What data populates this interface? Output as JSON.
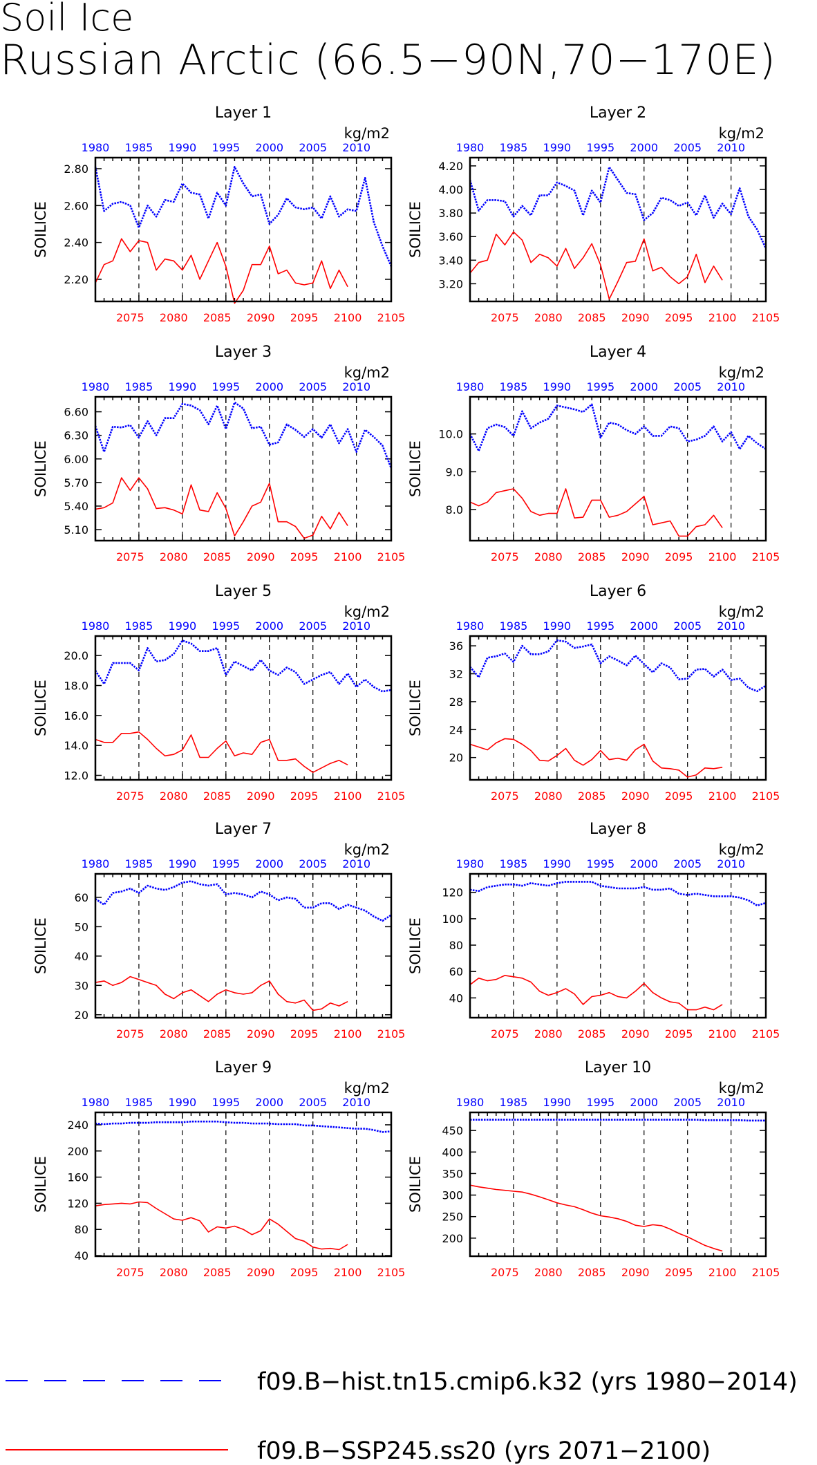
{
  "page": {
    "title_line1": "Soil Ice",
    "title_line2": "Russian Arctic (66.5−90N,70−170E)"
  },
  "colors": {
    "hist": "#0000ff",
    "ssp": "#ff0000",
    "axis": "#000000"
  },
  "axes_text": {
    "ylabel": "SOILICE",
    "units": "kg/m2",
    "top_ticks": [
      "1980",
      "1985",
      "1990",
      "1995",
      "2000",
      "2005",
      "2010"
    ],
    "bottom_ticks": [
      "2075",
      "2080",
      "2085",
      "2090",
      "2095",
      "2100",
      "2105"
    ]
  },
  "legend": {
    "hist_label": "f09.B−hist.tn15.cmip6.k32 (yrs 1980−2014)",
    "ssp_label": "f09.B−SSP245.ss20 (yrs 2071−2100)"
  },
  "chart_data": [
    {
      "type": "line",
      "title": "Layer 1",
      "ylabel": "SOILICE",
      "units": "kg/m2",
      "x_top": {
        "range": [
          1980,
          2014
        ]
      },
      "x_bottom": {
        "range": [
          2071,
          2105
        ]
      },
      "ylim": [
        2.08,
        2.86
      ],
      "yticks": [
        "2.20",
        "2.40",
        "2.60",
        "2.80"
      ],
      "series": [
        {
          "name": "f09.B−hist.tn15.cmip6.k32",
          "axis": "top",
          "x0": 1980,
          "values": [
            2.81,
            2.57,
            2.61,
            2.62,
            2.6,
            2.48,
            2.6,
            2.54,
            2.63,
            2.62,
            2.72,
            2.67,
            2.66,
            2.53,
            2.67,
            2.6,
            2.81,
            2.72,
            2.65,
            2.66,
            2.5,
            2.55,
            2.64,
            2.59,
            2.58,
            2.59,
            2.53,
            2.65,
            2.54,
            2.58,
            2.57,
            2.75,
            2.51,
            2.38,
            2.27
          ]
        },
        {
          "name": "f09.B−SSP245.ss20",
          "axis": "bottom",
          "x0": 2071,
          "values": [
            2.18,
            2.28,
            2.3,
            2.42,
            2.35,
            2.41,
            2.4,
            2.25,
            2.31,
            2.3,
            2.25,
            2.33,
            2.2,
            2.3,
            2.4,
            2.27,
            2.07,
            2.14,
            2.28,
            2.28,
            2.38,
            2.23,
            2.25,
            2.18,
            2.17,
            2.18,
            2.3,
            2.15,
            2.25,
            2.16
          ]
        }
      ]
    },
    {
      "type": "line",
      "title": "Layer 2",
      "ylabel": "SOILICE",
      "units": "kg/m2",
      "x_top": {
        "range": [
          1980,
          2014
        ]
      },
      "x_bottom": {
        "range": [
          2071,
          2105
        ]
      },
      "ylim": [
        3.05,
        4.27
      ],
      "yticks": [
        "3.20",
        "3.40",
        "3.60",
        "3.80",
        "4.00",
        "4.20"
      ],
      "series": [
        {
          "name": "f09.B−hist.tn15.cmip6.k32",
          "axis": "top",
          "x0": 1980,
          "values": [
            4.08,
            3.82,
            3.91,
            3.91,
            3.9,
            3.77,
            3.86,
            3.78,
            3.95,
            3.95,
            4.06,
            4.03,
            3.99,
            3.78,
            3.99,
            3.89,
            4.19,
            4.08,
            3.97,
            3.96,
            3.74,
            3.8,
            3.93,
            3.91,
            3.86,
            3.89,
            3.78,
            3.95,
            3.76,
            3.88,
            3.79,
            4.01,
            3.77,
            3.66,
            3.5
          ]
        },
        {
          "name": "f09.B−SSP245.ss20",
          "axis": "bottom",
          "x0": 2071,
          "values": [
            3.29,
            3.38,
            3.4,
            3.62,
            3.53,
            3.64,
            3.57,
            3.38,
            3.45,
            3.42,
            3.35,
            3.5,
            3.33,
            3.42,
            3.54,
            3.36,
            3.07,
            3.22,
            3.38,
            3.39,
            3.58,
            3.31,
            3.34,
            3.26,
            3.2,
            3.26,
            3.45,
            3.21,
            3.35,
            3.23
          ]
        }
      ]
    },
    {
      "type": "line",
      "title": "Layer 3",
      "ylabel": "SOILICE",
      "units": "kg/m2",
      "x_top": {
        "range": [
          1980,
          2014
        ]
      },
      "x_bottom": {
        "range": [
          2071,
          2105
        ]
      },
      "ylim": [
        4.96,
        6.79
      ],
      "yticks": [
        "5.10",
        "5.40",
        "5.70",
        "6.00",
        "6.30",
        "6.60"
      ],
      "series": [
        {
          "name": "f09.B−hist.tn15.cmip6.k32",
          "axis": "top",
          "x0": 1980,
          "values": [
            6.42,
            6.09,
            6.41,
            6.4,
            6.43,
            6.27,
            6.48,
            6.3,
            6.52,
            6.52,
            6.7,
            6.68,
            6.62,
            6.44,
            6.68,
            6.38,
            6.72,
            6.64,
            6.39,
            6.41,
            6.18,
            6.21,
            6.44,
            6.37,
            6.28,
            6.38,
            6.27,
            6.44,
            6.2,
            6.38,
            6.09,
            6.37,
            6.28,
            6.17,
            5.88
          ]
        },
        {
          "name": "f09.B−SSP245.ss20",
          "axis": "bottom",
          "x0": 2071,
          "values": [
            5.36,
            5.38,
            5.44,
            5.76,
            5.6,
            5.76,
            5.62,
            5.37,
            5.38,
            5.35,
            5.3,
            5.67,
            5.35,
            5.33,
            5.57,
            5.37,
            5.02,
            5.2,
            5.4,
            5.45,
            5.69,
            5.2,
            5.2,
            5.14,
            4.99,
            5.03,
            5.27,
            5.11,
            5.32,
            5.15
          ]
        }
      ]
    },
    {
      "type": "line",
      "title": "Layer 4",
      "ylabel": "SOILICE",
      "units": "kg/m2",
      "x_top": {
        "range": [
          1980,
          2014
        ]
      },
      "x_bottom": {
        "range": [
          2071,
          2105
        ]
      },
      "ylim": [
        7.18,
        10.98
      ],
      "yticks": [
        "8.0",
        "9.0",
        "10.0"
      ],
      "series": [
        {
          "name": "f09.B−hist.tn15.cmip6.k32",
          "axis": "top",
          "x0": 1980,
          "values": [
            10.0,
            9.55,
            10.15,
            10.25,
            10.18,
            9.95,
            10.6,
            10.15,
            10.3,
            10.4,
            10.75,
            10.7,
            10.65,
            10.58,
            10.78,
            9.9,
            10.3,
            10.25,
            10.1,
            10.0,
            10.2,
            9.95,
            9.95,
            10.2,
            10.15,
            9.8,
            9.85,
            9.95,
            10.2,
            9.8,
            10.05,
            9.6,
            9.95,
            9.75,
            9.6
          ]
        },
        {
          "name": "f09.B−SSP245.ss20",
          "axis": "bottom",
          "x0": 2071,
          "values": [
            8.2,
            8.1,
            8.2,
            8.45,
            8.5,
            8.55,
            8.3,
            7.95,
            7.85,
            7.9,
            7.9,
            8.55,
            7.78,
            7.8,
            8.25,
            8.25,
            7.8,
            7.85,
            7.95,
            8.15,
            8.35,
            7.6,
            7.65,
            7.7,
            7.3,
            7.3,
            7.55,
            7.6,
            7.85,
            7.52
          ]
        }
      ]
    },
    {
      "type": "line",
      "title": "Layer 5",
      "ylabel": "SOILICE",
      "units": "kg/m2",
      "x_top": {
        "range": [
          1980,
          2014
        ]
      },
      "x_bottom": {
        "range": [
          2071,
          2105
        ]
      },
      "ylim": [
        11.7,
        21.3
      ],
      "yticks": [
        "12.0",
        "14.0",
        "16.0",
        "18.0",
        "20.0"
      ],
      "series": [
        {
          "name": "f09.B−hist.tn15.cmip6.k32",
          "axis": "top",
          "x0": 1980,
          "values": [
            19.0,
            18.1,
            19.5,
            19.5,
            19.5,
            19.0,
            20.5,
            19.6,
            19.7,
            20.1,
            21.0,
            20.8,
            20.3,
            20.3,
            20.5,
            18.7,
            19.6,
            19.3,
            19.0,
            19.7,
            19.0,
            18.7,
            19.2,
            18.9,
            18.1,
            18.4,
            18.7,
            18.9,
            18.1,
            18.8,
            17.9,
            18.4,
            17.9,
            17.6,
            17.7
          ]
        },
        {
          "name": "f09.B−SSP245.ss20",
          "axis": "bottom",
          "x0": 2071,
          "values": [
            14.4,
            14.2,
            14.2,
            14.8,
            14.8,
            14.9,
            14.4,
            13.8,
            13.3,
            13.4,
            13.7,
            14.7,
            13.2,
            13.2,
            13.8,
            14.3,
            13.3,
            13.5,
            13.4,
            14.2,
            14.4,
            13.0,
            13.0,
            13.1,
            12.6,
            12.2,
            12.5,
            12.8,
            13.0,
            12.7
          ]
        }
      ]
    },
    {
      "type": "line",
      "title": "Layer 6",
      "ylabel": "SOILICE",
      "units": "kg/m2",
      "x_top": {
        "range": [
          1980,
          2014
        ]
      },
      "x_bottom": {
        "range": [
          2071,
          2105
        ]
      },
      "ylim": [
        16.8,
        37.4
      ],
      "yticks": [
        "20",
        "24",
        "28",
        "32",
        "36"
      ],
      "series": [
        {
          "name": "f09.B−hist.tn15.cmip6.k32",
          "axis": "top",
          "x0": 1980,
          "values": [
            33.0,
            31.5,
            34.3,
            34.5,
            34.9,
            33.7,
            36.0,
            34.8,
            34.8,
            35.2,
            36.8,
            36.6,
            35.7,
            35.9,
            36.2,
            33.5,
            34.5,
            33.9,
            33.2,
            34.6,
            33.4,
            32.2,
            33.5,
            32.9,
            31.2,
            31.3,
            32.6,
            32.7,
            31.6,
            32.6,
            31.1,
            31.3,
            30.0,
            29.5,
            30.3
          ]
        },
        {
          "name": "f09.B−SSP245.ss20",
          "axis": "bottom",
          "x0": 2071,
          "values": [
            21.9,
            21.5,
            21.1,
            22.1,
            22.7,
            22.6,
            21.9,
            21.0,
            19.6,
            19.5,
            20.3,
            21.3,
            19.6,
            18.9,
            19.7,
            21.0,
            19.7,
            19.9,
            19.6,
            21.1,
            21.9,
            19.5,
            18.5,
            18.4,
            18.2,
            17.2,
            17.5,
            18.5,
            18.4,
            18.6
          ]
        }
      ]
    },
    {
      "type": "line",
      "title": "Layer 7",
      "ylabel": "SOILICE",
      "units": "kg/m2",
      "x_top": {
        "range": [
          1980,
          2014
        ]
      },
      "x_bottom": {
        "range": [
          2071,
          2105
        ]
      },
      "ylim": [
        19,
        68
      ],
      "yticks": [
        "20",
        "30",
        "40",
        "50",
        "60"
      ],
      "series": [
        {
          "name": "f09.B−hist.tn15.cmip6.k32",
          "axis": "top",
          "x0": 1980,
          "values": [
            59.5,
            57.5,
            61.5,
            62.0,
            63.0,
            61.5,
            64.0,
            63.0,
            62.5,
            63.5,
            65.0,
            65.5,
            64.5,
            64.0,
            64.5,
            61.0,
            61.5,
            61.0,
            60.0,
            62.0,
            61.0,
            59.0,
            60.0,
            59.5,
            56.5,
            56.5,
            58.0,
            58.0,
            56.0,
            57.5,
            56.5,
            55.5,
            53.5,
            52.0,
            54.0
          ]
        },
        {
          "name": "f09.B−SSP245.ss20",
          "axis": "bottom",
          "x0": 2071,
          "values": [
            31.0,
            31.5,
            30.0,
            31.0,
            33.0,
            32.0,
            31.0,
            30.0,
            27.0,
            25.5,
            27.5,
            28.5,
            26.5,
            24.5,
            27.0,
            28.5,
            27.5,
            27.0,
            27.5,
            30.0,
            31.5,
            27.0,
            24.5,
            24.0,
            25.0,
            21.5,
            22.0,
            24.0,
            23.0,
            24.5
          ]
        }
      ]
    },
    {
      "type": "line",
      "title": "Layer 8",
      "ylabel": "SOILICE",
      "units": "kg/m2",
      "x_top": {
        "range": [
          1980,
          2014
        ]
      },
      "x_bottom": {
        "range": [
          2071,
          2105
        ]
      },
      "ylim": [
        25,
        134
      ],
      "yticks": [
        "40",
        "60",
        "80",
        "100",
        "120"
      ],
      "series": [
        {
          "name": "f09.B−hist.tn15.cmip6.k32",
          "axis": "top",
          "x0": 1980,
          "values": [
            122,
            121,
            124,
            125,
            126,
            126,
            125,
            127,
            126,
            125,
            127,
            128,
            128,
            128,
            128,
            125,
            124,
            123,
            123,
            123,
            124,
            122,
            122,
            123,
            119,
            118,
            119,
            118,
            117,
            117,
            117,
            116,
            114,
            110,
            112
          ]
        },
        {
          "name": "f09.B−SSP245.ss20",
          "axis": "bottom",
          "x0": 2071,
          "values": [
            50,
            55,
            53,
            54,
            57,
            56,
            55,
            52,
            45,
            42,
            44,
            47,
            43,
            35,
            41,
            42,
            44,
            41,
            40,
            45,
            51,
            44,
            40,
            37,
            36,
            31,
            31,
            33,
            31,
            35
          ]
        }
      ]
    },
    {
      "type": "line",
      "title": "Layer 9",
      "ylabel": "SOILICE",
      "units": "kg/m2",
      "x_top": {
        "range": [
          1980,
          2014
        ]
      },
      "x_bottom": {
        "range": [
          2071,
          2105
        ]
      },
      "ylim": [
        39,
        259
      ],
      "yticks": [
        "40",
        "80",
        "120",
        "160",
        "200",
        "240"
      ],
      "series": [
        {
          "name": "f09.B−hist.tn15.cmip6.k32",
          "axis": "top",
          "x0": 1980,
          "values": [
            242,
            241,
            242,
            242,
            243,
            243,
            243,
            244,
            244,
            244,
            244,
            245,
            245,
            245,
            245,
            244,
            243,
            243,
            242,
            242,
            242,
            241,
            241,
            241,
            239,
            239,
            238,
            237,
            236,
            235,
            234,
            234,
            232,
            229,
            230
          ]
        },
        {
          "name": "f09.B−SSP245.ss20",
          "axis": "bottom",
          "x0": 2071,
          "values": [
            116,
            118,
            119,
            120,
            119,
            122,
            121,
            112,
            104,
            96,
            94,
            98,
            93,
            76,
            84,
            82,
            85,
            80,
            72,
            78,
            96,
            88,
            77,
            66,
            62,
            53,
            50,
            51,
            49,
            57
          ]
        }
      ]
    },
    {
      "type": "line",
      "title": "Layer 10",
      "ylabel": "SOILICE",
      "units": "kg/m2",
      "x_top": {
        "range": [
          1980,
          2014
        ]
      },
      "x_bottom": {
        "range": [
          2071,
          2105
        ]
      },
      "ylim": [
        158,
        492
      ],
      "yticks": [
        "200",
        "250",
        "300",
        "350",
        "400",
        "450"
      ],
      "series": [
        {
          "name": "f09.B−hist.tn15.cmip6.k32",
          "axis": "top",
          "x0": 1980,
          "values": [
            475,
            475,
            475,
            475,
            475,
            475,
            475,
            475,
            475,
            475,
            475,
            475,
            475,
            475,
            475,
            475,
            475,
            475,
            475,
            475,
            475,
            475,
            475,
            475,
            475,
            475,
            475,
            474,
            474,
            474,
            474,
            474,
            473,
            473,
            473
          ]
        },
        {
          "name": "f09.B−SSP245.ss20",
          "axis": "bottom",
          "x0": 2071,
          "values": [
            323,
            319,
            316,
            313,
            311,
            309,
            307,
            302,
            296,
            289,
            282,
            277,
            273,
            266,
            258,
            252,
            249,
            245,
            239,
            230,
            227,
            231,
            229,
            221,
            211,
            203,
            193,
            183,
            176,
            170
          ]
        }
      ]
    }
  ]
}
